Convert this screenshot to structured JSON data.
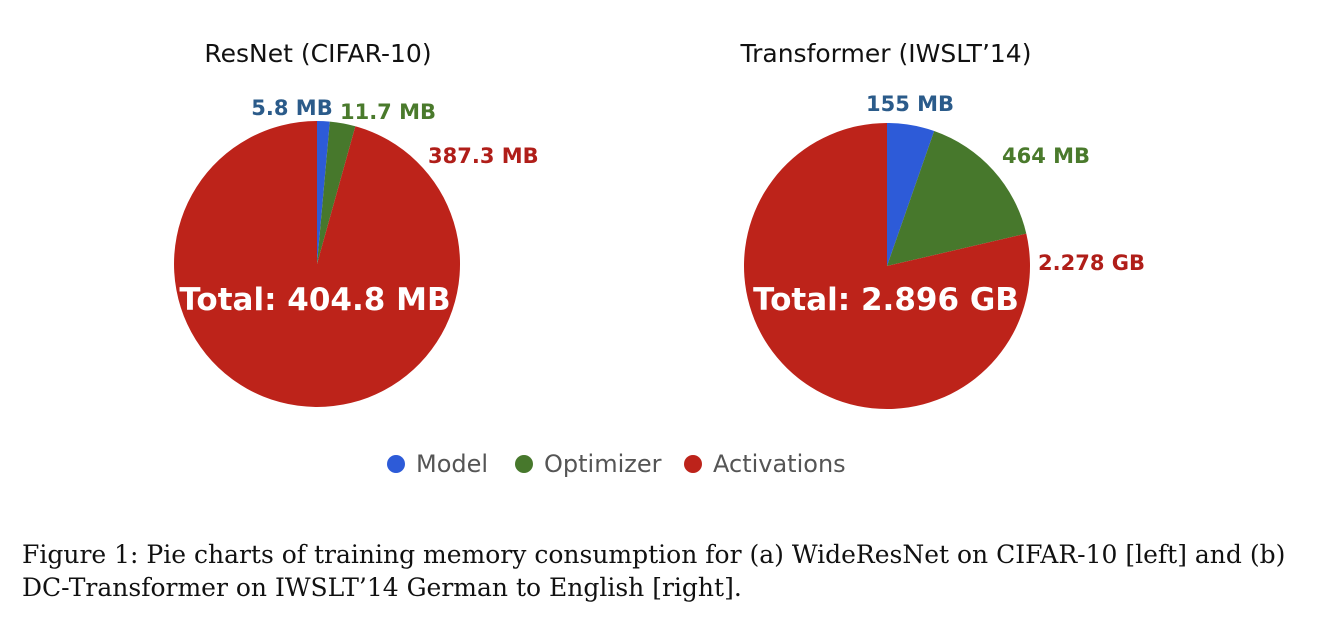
{
  "colors": {
    "model": "#2D5BD8",
    "optimizer": "#47782C",
    "activations": "#BD231A",
    "model_label": "#2B5B8A",
    "optimizer_label": "#4A7A2C",
    "activations_label": "#B01E19"
  },
  "chart_data": [
    {
      "type": "pie",
      "title": "ResNet (CIFAR-10)",
      "total_label": "Total: 404.8 MB",
      "slices": [
        {
          "name": "Model",
          "value": 5.8,
          "label": "5.8 MB"
        },
        {
          "name": "Optimizer",
          "value": 11.7,
          "label": "11.7 MB"
        },
        {
          "name": "Activations",
          "value": 387.3,
          "label": "387.3 MB"
        }
      ]
    },
    {
      "type": "pie",
      "title": "Transformer (IWSLT’14)",
      "total_label": "Total: 2.896 GB",
      "slices": [
        {
          "name": "Model",
          "value": 0.155,
          "label": "155 MB"
        },
        {
          "name": "Optimizer",
          "value": 0.464,
          "label": "464 MB"
        },
        {
          "name": "Activations",
          "value": 2.278,
          "label": "2.278 GB"
        }
      ]
    }
  ],
  "legend": [
    {
      "label": "Model",
      "color": "#2D5BD8"
    },
    {
      "label": "Optimizer",
      "color": "#47782C"
    },
    {
      "label": "Activations",
      "color": "#BD231A"
    }
  ],
  "caption": "Figure 1: Pie charts of training memory consumption for (a) WideResNet on CIFAR-10 [left] and (b) DC-Transformer on IWSLT’14 German to English [right]."
}
